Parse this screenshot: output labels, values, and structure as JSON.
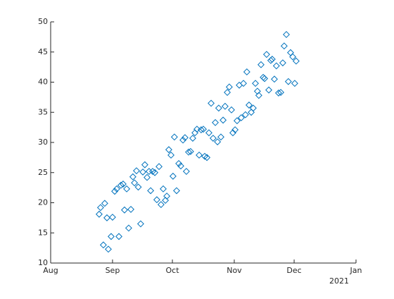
{
  "chart_data": {
    "type": "scatter",
    "x_secondary_label": "2021",
    "xlim": [
      0,
      153
    ],
    "xticks": [
      {
        "value": 0,
        "label": "Aug"
      },
      {
        "value": 31,
        "label": "Sep"
      },
      {
        "value": 61,
        "label": "Oct"
      },
      {
        "value": 92,
        "label": "Nov"
      },
      {
        "value": 122,
        "label": "Dec"
      },
      {
        "value": 153,
        "label": "Jan"
      }
    ],
    "ylim": [
      10,
      50
    ],
    "yticks": [
      10,
      15,
      20,
      25,
      30,
      35,
      40,
      45,
      50
    ],
    "color": "#0072bd",
    "x": [
      24.3,
      25,
      27.1,
      26.4,
      28.2,
      28.9,
      30.3,
      31,
      32.1,
      33.1,
      34.2,
      35.2,
      36.3,
      37,
      38.1,
      39.1,
      40.2,
      41.2,
      42,
      43,
      43.9,
      45.1,
      46.2,
      47.2,
      48.3,
      49.3,
      50.1,
      51.1,
      52.2,
      53.2,
      54.3,
      55.3,
      56.4,
      57.5,
      58.2,
      59.2,
      60.3,
      61.3,
      62,
      63.1,
      64.2,
      65.2,
      66.3,
      67.3,
      68,
      69.1,
      70.1,
      71.2,
      72.3,
      73.3,
      74.4,
      75.4,
      76.5,
      77.2,
      78.3,
      79.3,
      80.4,
      81.4,
      82.5,
      83.6,
      84.2,
      85.3,
      86.4,
      87.4,
      88.5,
      89.5,
      90.6,
      91.3,
      92.4,
      93.4,
      94.5,
      95.5,
      96.6,
      97.6,
      98.3,
      99.4,
      100.5,
      101.5,
      102.6,
      103.6,
      104.3,
      105.4,
      106.5,
      107.2,
      108.2,
      109.3,
      110.3,
      111,
      112.1,
      113.1,
      114.2,
      115.3,
      116.3,
      117,
      118.1,
      119.1,
      120.2,
      121.3,
      122.3,
      123
    ],
    "values": [
      18.1,
      19.2,
      19.9,
      13,
      17.5,
      12.3,
      14.4,
      17.6,
      21.9,
      22.3,
      14.4,
      22.9,
      23.1,
      18.8,
      22.3,
      15.8,
      18.9,
      24.3,
      23.3,
      25.3,
      22.6,
      16.5,
      25.1,
      26.3,
      24.2,
      25.2,
      22,
      25.2,
      25,
      20.5,
      26,
      19.7,
      22.3,
      20.4,
      21.1,
      28.8,
      27.9,
      24.4,
      30.9,
      22,
      26.5,
      26.1,
      30.4,
      30.8,
      25.2,
      28.4,
      28.5,
      30.7,
      31.6,
      32.2,
      27.9,
      32.1,
      32.2,
      27.7,
      27.5,
      31.6,
      36.5,
      30.7,
      33.3,
      30.1,
      35.7,
      30.9,
      33.7,
      36,
      38.3,
      39.2,
      35.4,
      31.6,
      32.1,
      33.6,
      39.5,
      34.1,
      39.8,
      34.6,
      41.7,
      36.2,
      35,
      35.7,
      39.8,
      38.5,
      37.8,
      42.9,
      40.8,
      40.6,
      44.6,
      38.7,
      43.6,
      43.8,
      40.5,
      42.7,
      38.2,
      38.3,
      43.2,
      46,
      47.9,
      40.1,
      44.9,
      44.2,
      39.8,
      43.5
    ]
  }
}
